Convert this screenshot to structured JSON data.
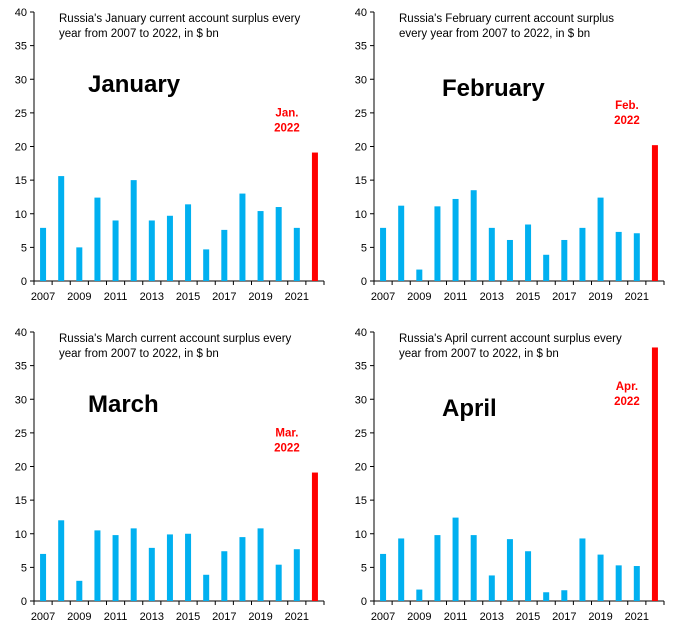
{
  "chart_data": [
    {
      "type": "bar",
      "subtitle": [
        "Russia's January current account surplus every",
        "year from 2007 to 2022, in $ bn"
      ],
      "label": "January",
      "categories": [
        "2007",
        "2008",
        "2009",
        "2010",
        "2011",
        "2012",
        "2013",
        "2014",
        "2015",
        "2016",
        "2017",
        "2018",
        "2019",
        "2020",
        "2021",
        "2022"
      ],
      "values": [
        7.9,
        15.6,
        5.0,
        12.4,
        9.0,
        15.0,
        9.0,
        9.7,
        11.4,
        4.7,
        7.6,
        13.0,
        10.4,
        11.0,
        7.9,
        19.1
      ],
      "highlight_index": 15,
      "annotation": [
        "Jan.",
        "2022"
      ],
      "xtick_labels": [
        "2007",
        "2009",
        "2011",
        "2013",
        "2015",
        "2017",
        "2019",
        "2021"
      ],
      "ytick_labels": [
        "0",
        "5",
        "10",
        "15",
        "20",
        "25",
        "30",
        "35",
        "40"
      ],
      "ylim": [
        0,
        40
      ],
      "bar_color": "#00b0f0",
      "highlight_color": "#ff0000",
      "grid": false
    },
    {
      "type": "bar",
      "subtitle": [
        "Russia's February current account surplus",
        "every year from 2007 to 2022, in $ bn"
      ],
      "label": "February",
      "categories": [
        "2007",
        "2008",
        "2009",
        "2010",
        "2011",
        "2012",
        "2013",
        "2014",
        "2015",
        "2016",
        "2017",
        "2018",
        "2019",
        "2020",
        "2021",
        "2022"
      ],
      "values": [
        7.9,
        11.2,
        1.7,
        11.1,
        12.2,
        13.5,
        7.9,
        6.1,
        8.4,
        3.9,
        6.1,
        7.9,
        12.4,
        7.3,
        7.1,
        20.2
      ],
      "highlight_index": 15,
      "annotation": [
        "Feb.",
        "2022"
      ],
      "xtick_labels": [
        "2007",
        "2009",
        "2011",
        "2013",
        "2015",
        "2017",
        "2019",
        "2021"
      ],
      "ytick_labels": [
        "0",
        "5",
        "10",
        "15",
        "20",
        "25",
        "30",
        "35",
        "40"
      ],
      "ylim": [
        0,
        40
      ],
      "bar_color": "#00b0f0",
      "highlight_color": "#ff0000",
      "grid": false
    },
    {
      "type": "bar",
      "subtitle": [
        "Russia's March current account surplus every",
        "year from 2007 to 2022, in $ bn"
      ],
      "label": "March",
      "categories": [
        "2007",
        "2008",
        "2009",
        "2010",
        "2011",
        "2012",
        "2013",
        "2014",
        "2015",
        "2016",
        "2017",
        "2018",
        "2019",
        "2020",
        "2021",
        "2022"
      ],
      "values": [
        7.0,
        12.0,
        3.0,
        10.5,
        9.8,
        10.8,
        7.9,
        9.9,
        10.0,
        3.9,
        7.4,
        9.5,
        10.8,
        5.4,
        7.7,
        19.1
      ],
      "highlight_index": 15,
      "annotation": [
        "Mar.",
        "2022"
      ],
      "xtick_labels": [
        "2007",
        "2009",
        "2011",
        "2013",
        "2015",
        "2017",
        "2019",
        "2021"
      ],
      "ytick_labels": [
        "0",
        "5",
        "10",
        "15",
        "20",
        "25",
        "30",
        "35",
        "40"
      ],
      "ylim": [
        0,
        40
      ],
      "bar_color": "#00b0f0",
      "highlight_color": "#ff0000",
      "grid": false
    },
    {
      "type": "bar",
      "subtitle": [
        "Russia's April current account surplus every",
        "year from 2007 to 2022, in $ bn"
      ],
      "label": "April",
      "categories": [
        "2007",
        "2008",
        "2009",
        "2010",
        "2011",
        "2012",
        "2013",
        "2014",
        "2015",
        "2016",
        "2017",
        "2018",
        "2019",
        "2020",
        "2021",
        "2022"
      ],
      "values": [
        7.0,
        9.3,
        1.7,
        9.8,
        12.4,
        9.8,
        3.8,
        9.2,
        7.4,
        1.3,
        1.6,
        9.3,
        6.9,
        5.3,
        5.2,
        37.7
      ],
      "highlight_index": 15,
      "annotation": [
        "Apr.",
        "2022"
      ],
      "xtick_labels": [
        "2007",
        "2009",
        "2011",
        "2013",
        "2015",
        "2017",
        "2019",
        "2021"
      ],
      "ytick_labels": [
        "0",
        "5",
        "10",
        "15",
        "20",
        "25",
        "30",
        "35",
        "40"
      ],
      "ylim": [
        0,
        40
      ],
      "bar_color": "#00b0f0",
      "highlight_color": "#ff0000",
      "grid": false
    }
  ]
}
